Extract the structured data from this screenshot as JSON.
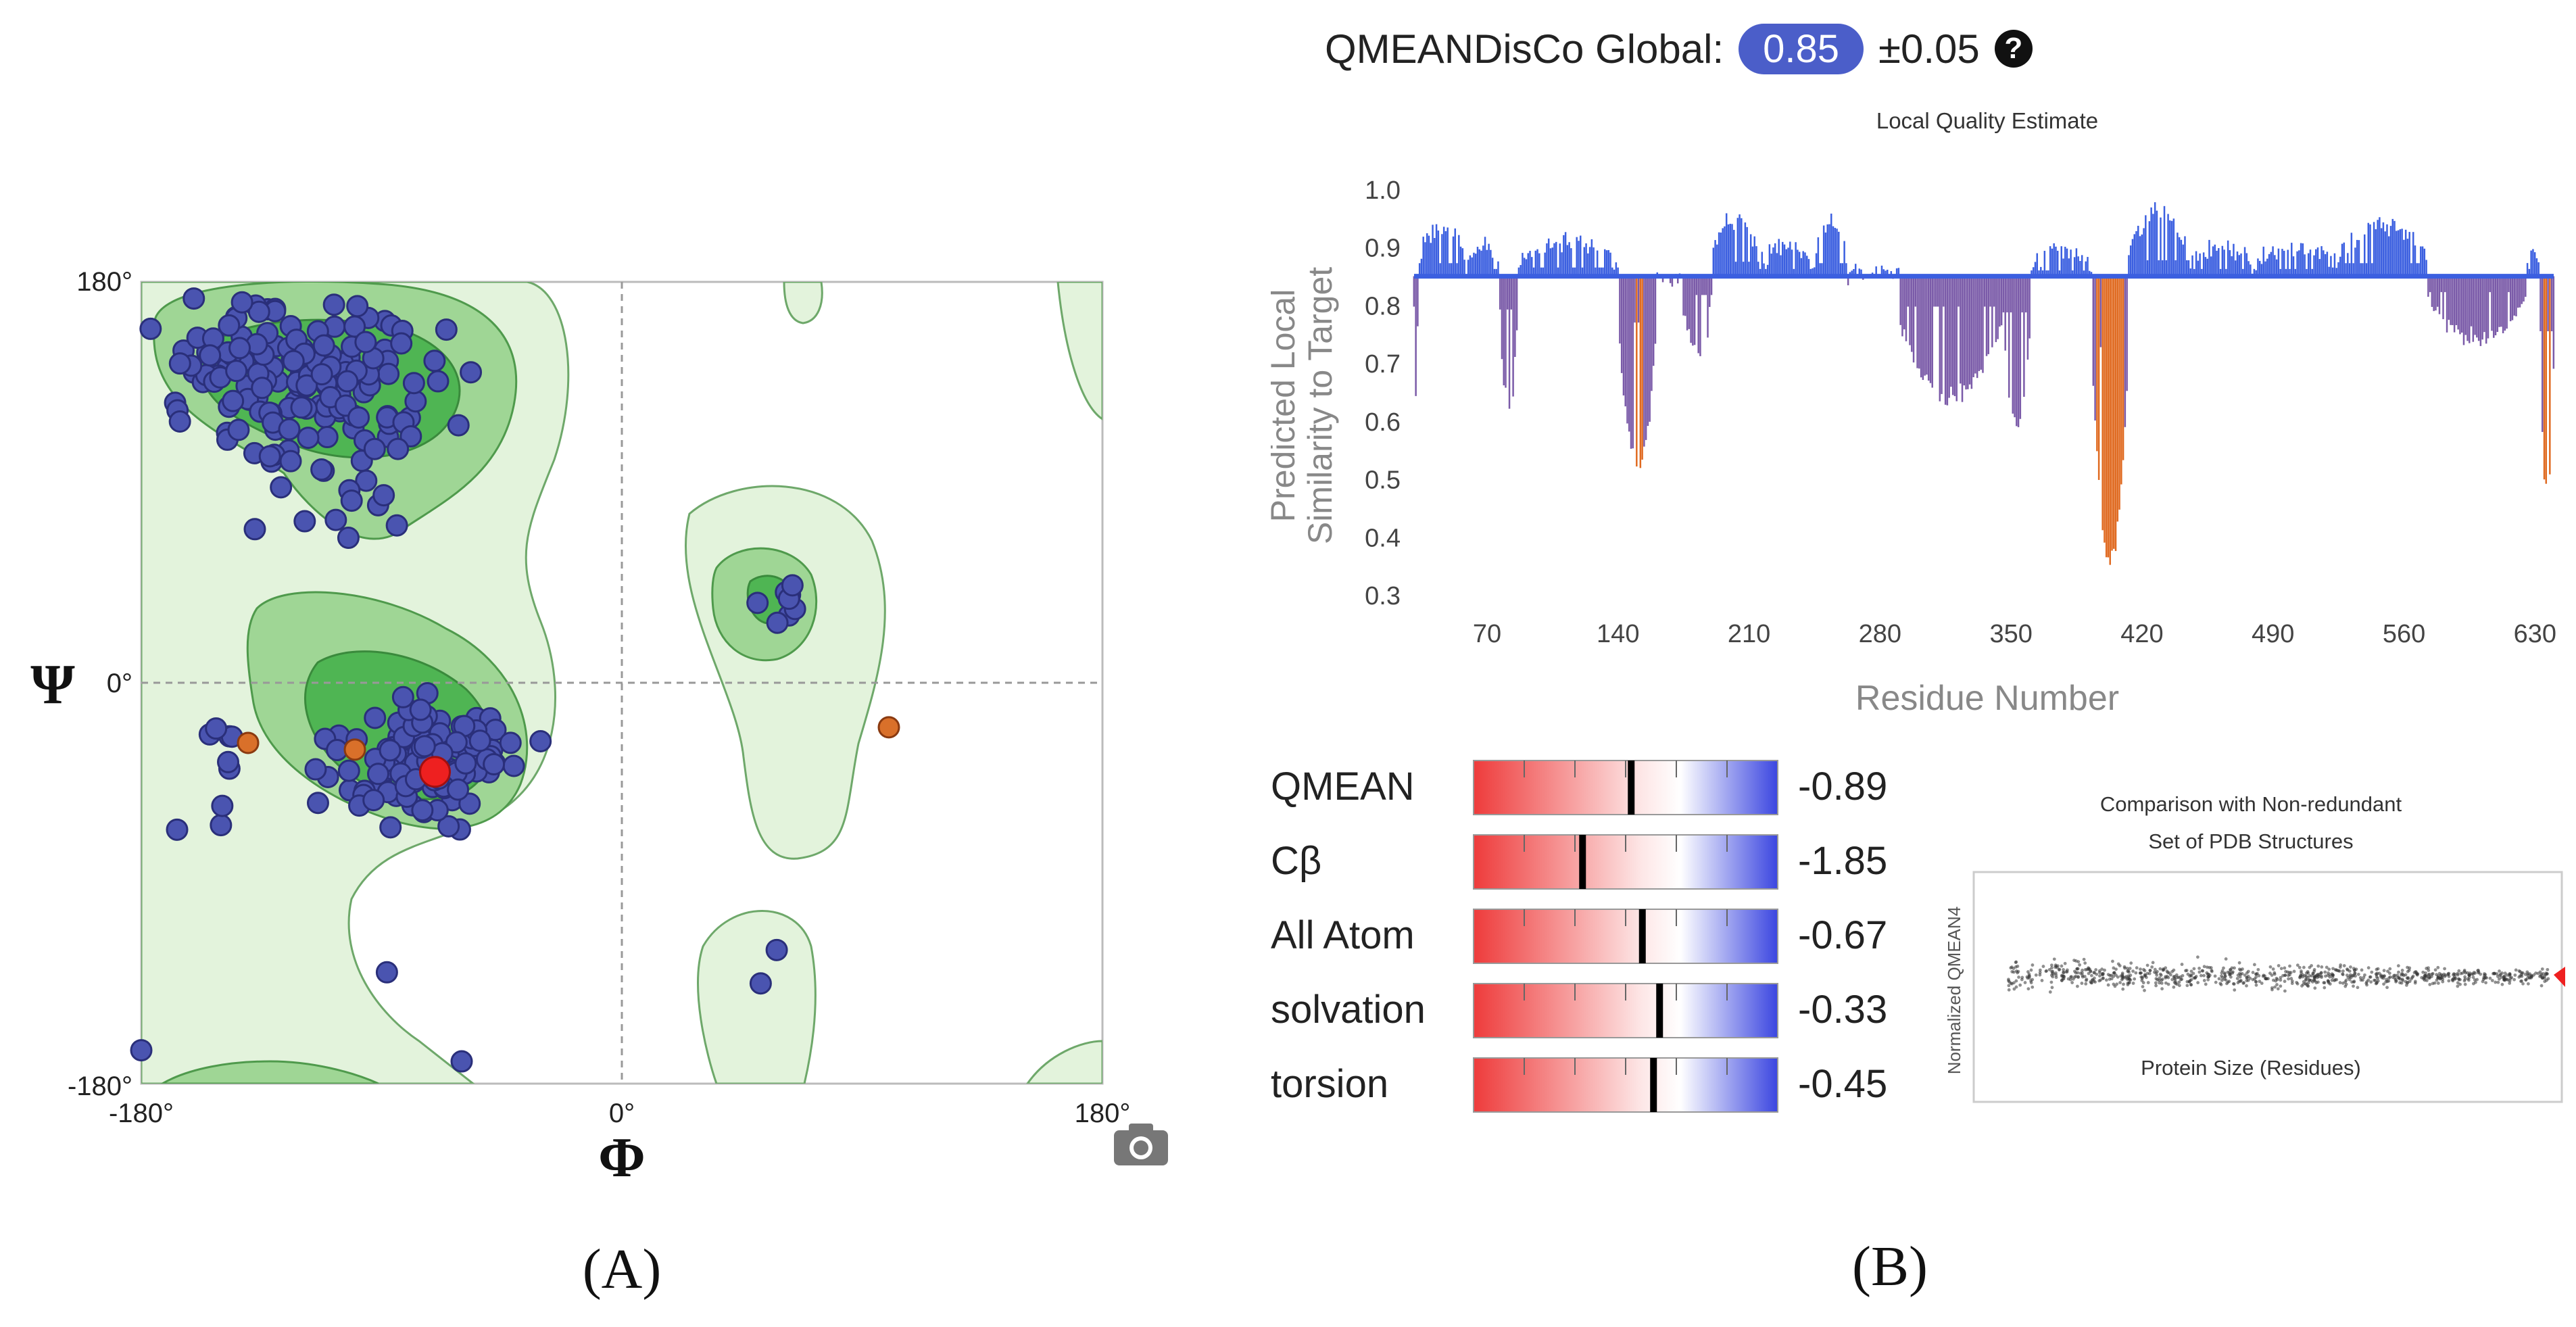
{
  "panel_labels": {
    "a": "(A)",
    "b": "(B)"
  },
  "ramachandran": {
    "phi_symbol": "Φ",
    "psi_symbol": "Ψ",
    "x_ticks": [
      "-180°",
      "0°",
      "180°"
    ],
    "y_ticks": [
      "180°",
      "0°",
      "-180°"
    ],
    "camera_icon": "camera-icon",
    "colors": {
      "region_light": "#e3f3dc",
      "region_mid": "#9fd695",
      "region_dark": "#4fb553",
      "point_fill": "#4a54b0",
      "point_stroke": "#2a2f7a",
      "outlier": "#d9702a",
      "highlight": "#ee2020"
    }
  },
  "global_score": {
    "label": "QMEANDisCo Global:",
    "value": "0.85",
    "error": "±0.05",
    "help_icon": "question-circle-icon",
    "badge_color": "#4b5ec9"
  },
  "local_quality": {
    "title": "Local Quality Estimate",
    "ylabel_line1": "Predicted Local",
    "ylabel_line2": "Similarity to Target",
    "xlabel": "Residue Number",
    "y_ticks": [
      "1.0",
      "0.9",
      "0.8",
      "0.7",
      "0.6",
      "0.5",
      "0.4",
      "0.3"
    ],
    "x_ticks": [
      "70",
      "140",
      "210",
      "280",
      "350",
      "420",
      "490",
      "560",
      "630"
    ],
    "colors": {
      "high": "#3b5fe0",
      "mid": "#7a5aa8",
      "low": "#e06a20"
    }
  },
  "z_scores": {
    "rows": [
      {
        "label": "QMEAN",
        "value": "-0.89"
      },
      {
        "label": "Cβ",
        "value": "-1.85"
      },
      {
        "label": "All Atom",
        "value": "-0.67"
      },
      {
        "label": "solvation",
        "value": "-0.33"
      },
      {
        "label": "torsion",
        "value": "-0.45"
      }
    ],
    "colors": {
      "negative": "#ee3b3b",
      "positive": "#3b46e0",
      "marker": "#000000"
    }
  },
  "comparison": {
    "title_line1": "Comparison with Non-redundant",
    "title_line2": "Set of PDB Structures",
    "xlabel": "Protein Size (Residues)",
    "ylabel": "Normalized QMEAN4",
    "colors": {
      "reference": "#333333",
      "model": "#ee2020"
    }
  },
  "chart_data": [
    {
      "type": "scatter",
      "title": "",
      "xlabel": "Φ",
      "ylabel": "Ψ",
      "xlim": [
        -180,
        180
      ],
      "ylim": [
        -180,
        180
      ],
      "x_ticks": [
        -180,
        0,
        180
      ],
      "y_ticks": [
        -180,
        0,
        180
      ],
      "regions": [
        {
          "name": "favoured",
          "center": [
            -120,
            135
          ]
        },
        {
          "name": "favoured",
          "center": [
            -65,
            -40
          ]
        },
        {
          "name": "favoured",
          "center": [
            60,
            40
          ]
        }
      ],
      "outliers": [
        [
          -100,
          -30
        ],
        [
          -140,
          -27
        ],
        [
          100,
          -20
        ]
      ],
      "highlight": [
        [
          -70,
          -40
        ]
      ]
    },
    {
      "type": "bar",
      "title": "Local Quality Estimate",
      "xlabel": "Residue Number",
      "ylabel": "Predicted Local Similarity to Target",
      "baseline": 0.85,
      "ylim": [
        0.3,
        1.0
      ],
      "xlim": [
        31,
        640
      ],
      "x_ticks": [
        70,
        140,
        210,
        280,
        350,
        420,
        490,
        560,
        630
      ],
      "y_ticks": [
        0.3,
        0.4,
        0.5,
        0.6,
        0.7,
        0.8,
        0.9,
        1.0
      ],
      "segments": [
        {
          "from": 31,
          "to": 33,
          "value": 0.64
        },
        {
          "from": 34,
          "to": 58,
          "value": 0.94
        },
        {
          "from": 60,
          "to": 76,
          "value": 0.9
        },
        {
          "from": 77,
          "to": 86,
          "value": 0.62
        },
        {
          "from": 87,
          "to": 140,
          "value": 0.91
        },
        {
          "from": 141,
          "to": 160,
          "value": 0.53
        },
        {
          "from": 161,
          "to": 174,
          "value": 0.84
        },
        {
          "from": 175,
          "to": 190,
          "value": 0.72
        },
        {
          "from": 191,
          "to": 215,
          "value": 0.95
        },
        {
          "from": 216,
          "to": 244,
          "value": 0.9
        },
        {
          "from": 245,
          "to": 262,
          "value": 0.94
        },
        {
          "from": 263,
          "to": 290,
          "value": 0.86
        },
        {
          "from": 291,
          "to": 345,
          "value": 0.64
        },
        {
          "from": 346,
          "to": 360,
          "value": 0.6
        },
        {
          "from": 361,
          "to": 393,
          "value": 0.89
        },
        {
          "from": 394,
          "to": 412,
          "value": 0.36
        },
        {
          "from": 413,
          "to": 445,
          "value": 0.96
        },
        {
          "from": 446,
          "to": 480,
          "value": 0.9
        },
        {
          "from": 481,
          "to": 525,
          "value": 0.9
        },
        {
          "from": 526,
          "to": 572,
          "value": 0.94
        },
        {
          "from": 573,
          "to": 625,
          "value": 0.74
        },
        {
          "from": 626,
          "to": 632,
          "value": 0.9
        },
        {
          "from": 633,
          "to": 640,
          "value": 0.47
        }
      ]
    },
    {
      "type": "bar",
      "title": "",
      "categories": [
        "QMEAN",
        "Cβ",
        "All Atom",
        "solvation",
        "torsion"
      ],
      "values": [
        -0.89,
        -1.85,
        -0.67,
        -0.33,
        -0.45
      ],
      "xlim": [
        -4,
        2
      ]
    },
    {
      "type": "scatter",
      "title": "Comparison with Non-redundant Set of PDB Structures",
      "xlabel": "Protein Size (Residues)",
      "ylabel": "Normalized QMEAN4",
      "reference_trend": {
        "x": [
          0,
          1
        ],
        "y": [
          0,
          0
        ]
      },
      "model": {
        "x": 1.0,
        "y": -0.2
      }
    }
  ]
}
